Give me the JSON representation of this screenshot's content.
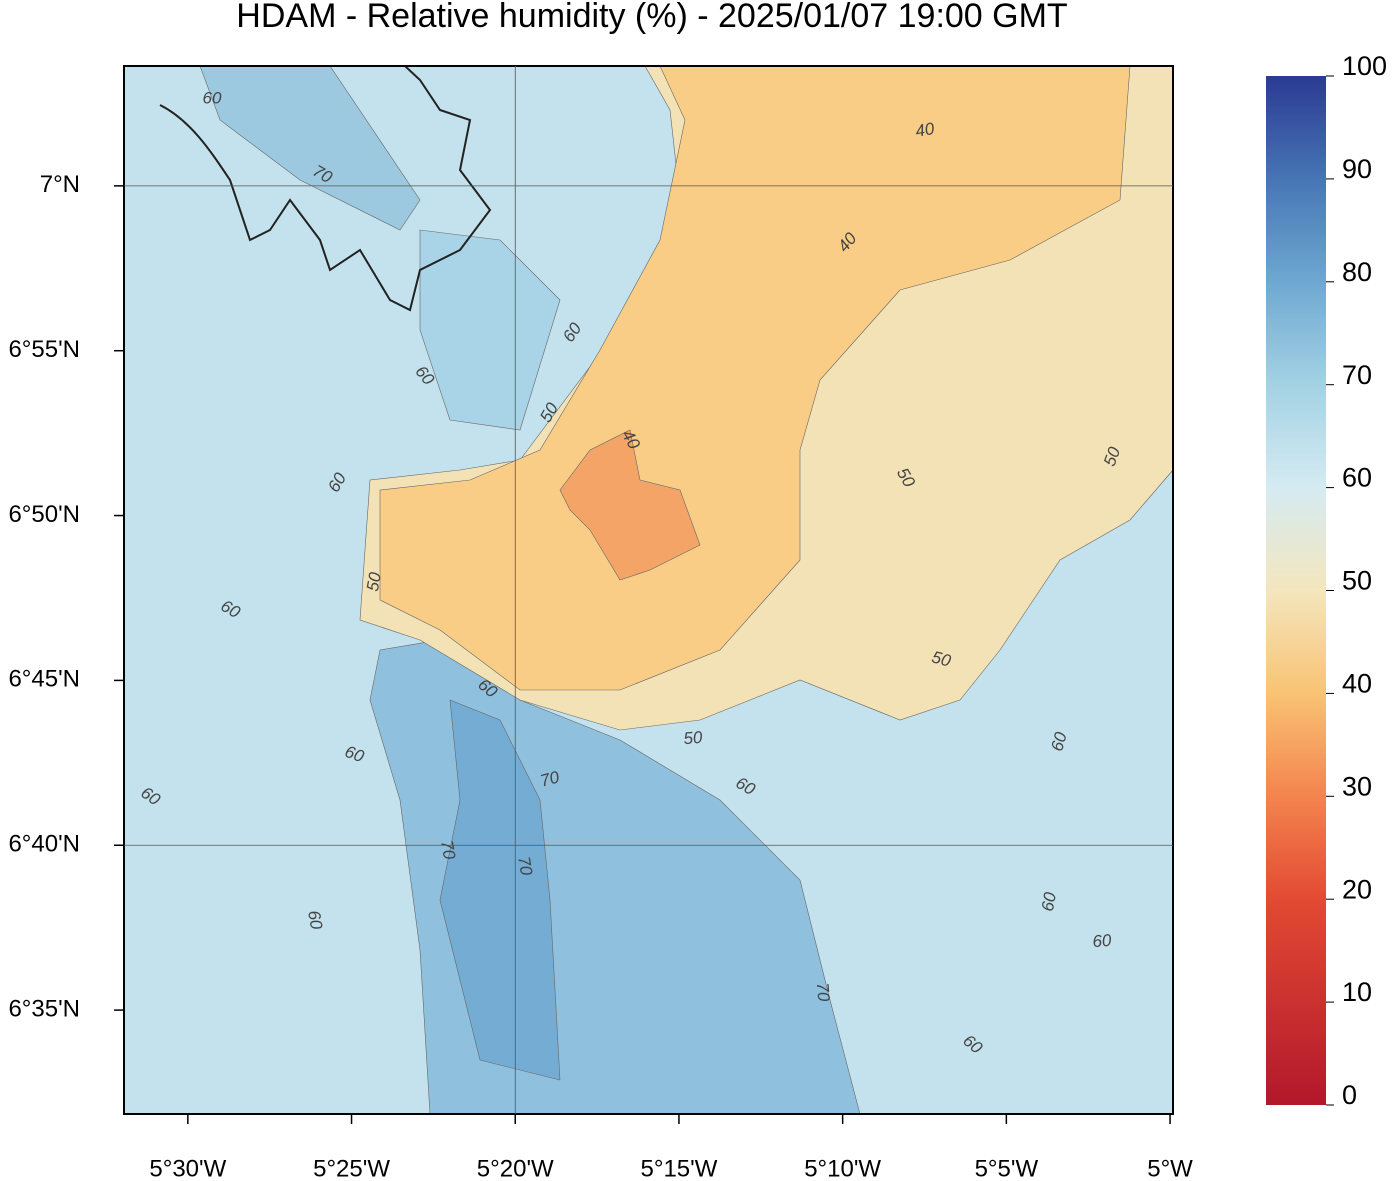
{
  "chart_data": {
    "type": "contour",
    "title": "HDAM - Relative humidity (%)  -  2025/01/07  19:00 GMT",
    "xlim": [
      -5.5325,
      -4.9985
    ],
    "ylim": [
      6.5308,
      7.0606
    ],
    "xticks": [
      {
        "value": -5.5,
        "label": "5°30'W"
      },
      {
        "value": -5.416667,
        "label": "5°25'W"
      },
      {
        "value": -5.333333,
        "label": "5°20'W"
      },
      {
        "value": -5.25,
        "label": "5°15'W"
      },
      {
        "value": -5.166667,
        "label": "5°10'W"
      },
      {
        "value": -5.083333,
        "label": "5°5'W"
      },
      {
        "value": -5,
        "label": "5°W"
      }
    ],
    "yticks": [
      {
        "value": 7,
        "label": "7°N"
      },
      {
        "value": 6.916667,
        "label": "6°55'N"
      },
      {
        "value": 6.833333,
        "label": "6°50'N"
      },
      {
        "value": 6.75,
        "label": "6°45'N"
      },
      {
        "value": 6.666667,
        "label": "6°40'N"
      },
      {
        "value": 6.583333,
        "label": "6°35'N"
      }
    ],
    "gridlines": {
      "x": [
        -5.333333
      ],
      "y": [
        7,
        6.666667
      ]
    },
    "colorbar": {
      "lim": [
        0,
        100
      ],
      "ticks": [
        0,
        10,
        20,
        30,
        40,
        50,
        60,
        70,
        80,
        90,
        100
      ]
    },
    "contour_labels": [
      60,
      70,
      40,
      40,
      60,
      60,
      50,
      40,
      50,
      50,
      60,
      50,
      60,
      50,
      60,
      50,
      60,
      60,
      70,
      60,
      60,
      70,
      70,
      60,
      60,
      60,
      70,
      60
    ]
  }
}
